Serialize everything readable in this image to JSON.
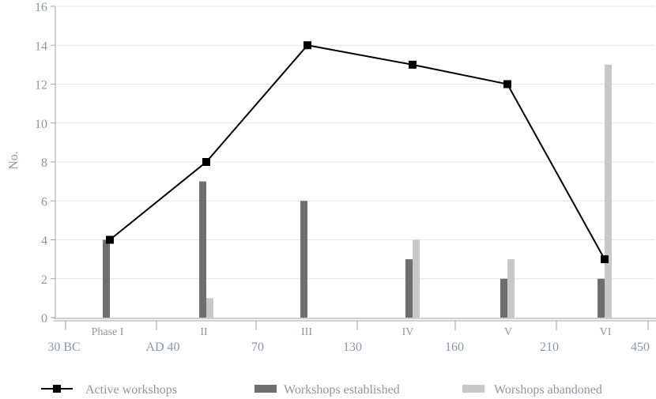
{
  "chart_data": {
    "type": "bar",
    "ylabel": "No.",
    "ylim": [
      0,
      16
    ],
    "yticks": [
      0,
      2,
      4,
      6,
      8,
      10,
      12,
      14,
      16
    ],
    "grid": true,
    "phases": [
      "Phase I",
      "II",
      "III",
      "IV",
      "V",
      "VI"
    ],
    "date_labels": [
      "30 BC",
      "AD 40",
      "70",
      "130",
      "160",
      "210",
      "450"
    ],
    "series": [
      {
        "name": "Active workshops",
        "kind": "line",
        "color": "#000000",
        "values": [
          4,
          8,
          14,
          13,
          12,
          3
        ]
      },
      {
        "name": "Workshops established",
        "kind": "bar",
        "color": "#6e6e6e",
        "values": [
          4,
          7,
          6,
          3,
          2,
          2
        ]
      },
      {
        "name": "Worshops abandoned",
        "kind": "bar",
        "color": "#c8c8c8",
        "values": [
          0,
          1,
          0,
          4,
          3,
          13
        ]
      }
    ],
    "legend_position": "bottom"
  }
}
